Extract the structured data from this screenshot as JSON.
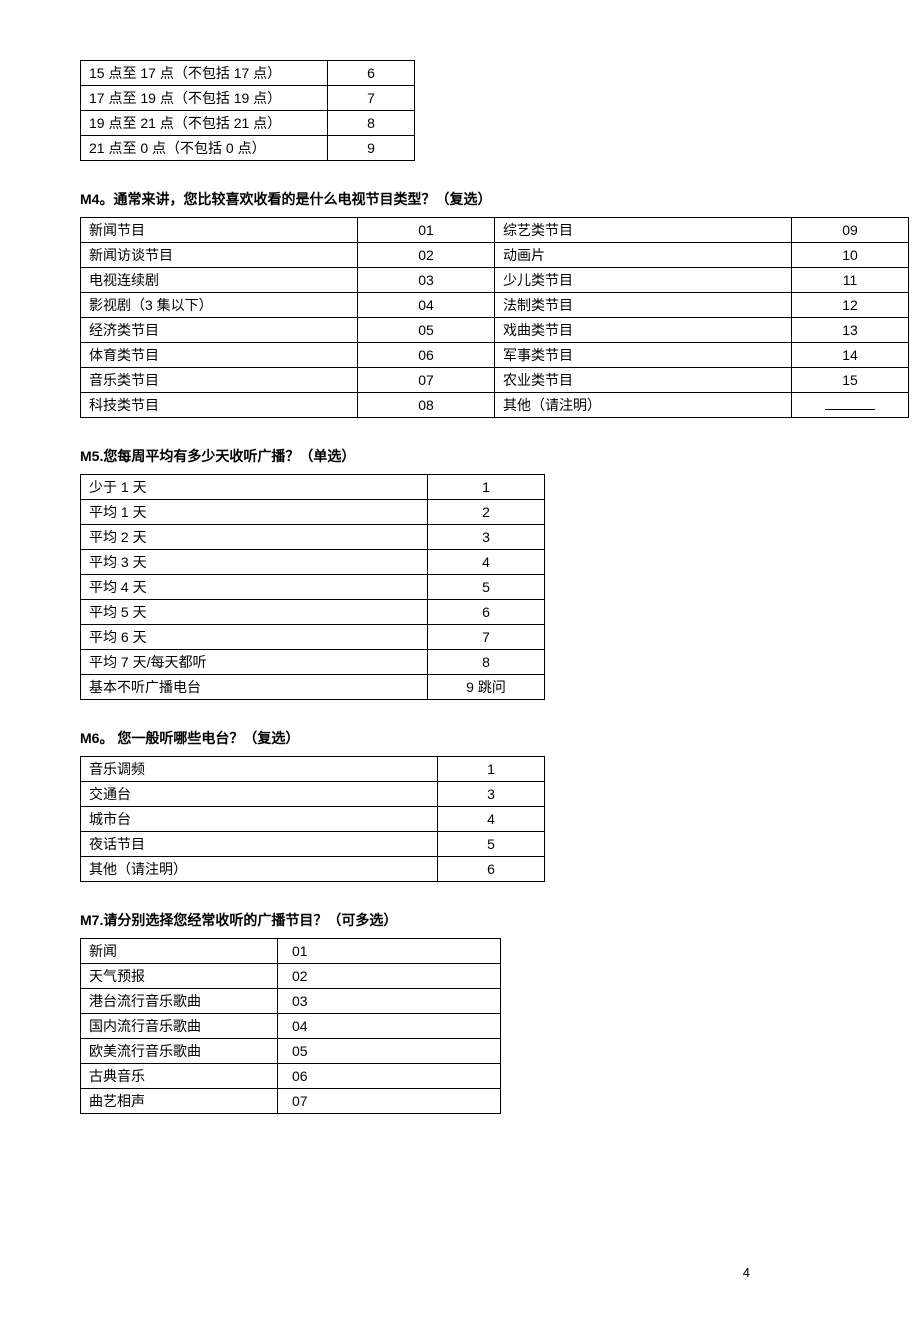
{
  "topTable": [
    {
      "label": "15 点至 17 点（不包括 17 点）",
      "code": "6"
    },
    {
      "label": "17 点至 19 点（不包括 19 点）",
      "code": "7"
    },
    {
      "label": "19 点至 21 点（不包括 21 点）",
      "code": "8"
    },
    {
      "label": "21 点至 0 点（不包括 0 点）",
      "code": "9"
    }
  ],
  "m4": {
    "title": "M4。通常来讲，您比较喜欢收看的是什么电视节目类型？（复选）",
    "rows": [
      {
        "l": "新闻节目",
        "lc": "01",
        "r": "综艺类节目",
        "rc": "09"
      },
      {
        "l": "新闻访谈节目",
        "lc": "02",
        "r": "动画片",
        "rc": "10"
      },
      {
        "l": "电视连续剧",
        "lc": "03",
        "r": "少儿类节目",
        "rc": "11"
      },
      {
        "l": "影视剧（3 集以下）",
        "lc": "04",
        "r": "法制类节目",
        "rc": "12"
      },
      {
        "l": "经济类节目",
        "lc": "05",
        "r": "戏曲类节目",
        "rc": "13"
      },
      {
        "l": "体育类节目",
        "lc": "06",
        "r": "军事类节目",
        "rc": "14"
      },
      {
        "l": "音乐类节目",
        "lc": "07",
        "r": "农业类节目",
        "rc": "15"
      },
      {
        "l": "科技类节目",
        "lc": "08",
        "r": "其他（请注明）",
        "rc": "__"
      }
    ]
  },
  "m5": {
    "title": "M5.您每周平均有多少天收听广播？（单选）",
    "rows": [
      {
        "label": "少于 1 天",
        "code": "1"
      },
      {
        "label": "平均 1 天",
        "code": "2"
      },
      {
        "label": "平均 2 天",
        "code": "3"
      },
      {
        "label": "平均 3 天",
        "code": "4"
      },
      {
        "label": "平均 4 天",
        "code": "5"
      },
      {
        "label": "平均 5 天",
        "code": "6"
      },
      {
        "label": "平均 6 天",
        "code": "7"
      },
      {
        "label": "平均 7 天/每天都听",
        "code": "8"
      },
      {
        "label": "基本不听广播电台",
        "code": "9  跳问"
      }
    ]
  },
  "m6": {
    "title": "M6。 您一般听哪些电台？（复选）",
    "rows": [
      {
        "label": "音乐调频",
        "code": "1"
      },
      {
        "label": "交通台",
        "code": "3"
      },
      {
        "label": "城市台",
        "code": "4"
      },
      {
        "label": "夜话节目",
        "code": "5"
      },
      {
        "label": "其他（请注明）",
        "code": "6"
      }
    ]
  },
  "m7": {
    "title": "M7.请分别选择您经常收听的广播节目？（可多选）",
    "rows": [
      {
        "label": "新闻",
        "code": "01"
      },
      {
        "label": "天气预报",
        "code": "02"
      },
      {
        "label": "港台流行音乐歌曲",
        "code": "03"
      },
      {
        "label": "国内流行音乐歌曲",
        "code": "04"
      },
      {
        "label": "欧美流行音乐歌曲",
        "code": "05"
      },
      {
        "label": "古典音乐",
        "code": "06"
      },
      {
        "label": "曲艺相声",
        "code": "07"
      }
    ]
  },
  "pageNumber": "4"
}
